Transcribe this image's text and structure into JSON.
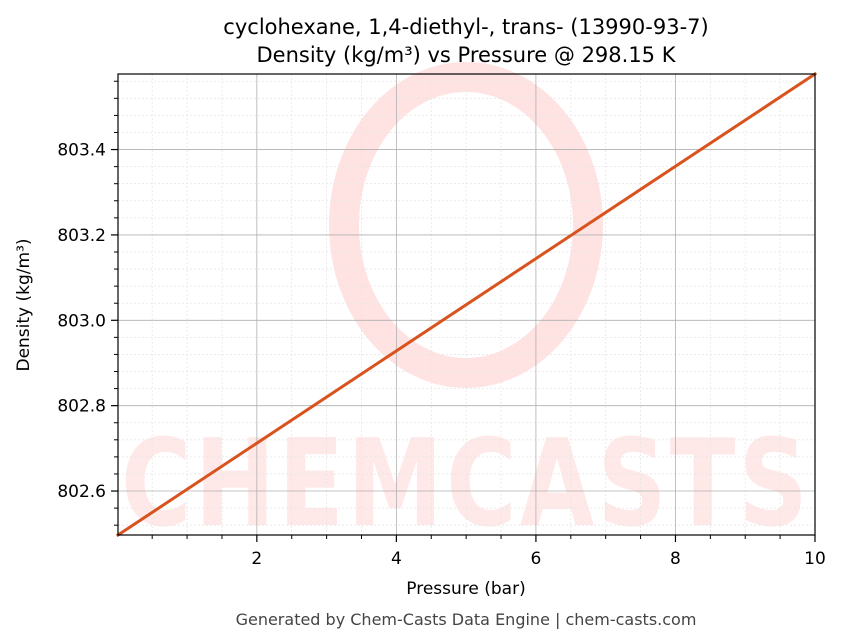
{
  "chart_data": {
    "type": "line",
    "title": "cyclohexane, 1,4-diethyl-, trans- (13990-93-7)",
    "subtitle": "Density (kg/m³) vs Pressure @ 298.15 K",
    "xlabel": "Pressure (bar)",
    "ylabel": "Density (kg/m³)",
    "xlim": [
      0.01,
      10
    ],
    "ylim": [
      802.497,
      803.577
    ],
    "xticks": [
      2,
      4,
      6,
      8,
      10
    ],
    "yticks": [
      802.6,
      802.8,
      803.0,
      803.2,
      803.4
    ],
    "ytick_labels": [
      "802.6",
      "802.8",
      "803.0",
      "803.2",
      "803.4"
    ],
    "grid": true,
    "series": [
      {
        "color": "#d9531e",
        "x": [
          0.01,
          10
        ],
        "y": [
          802.497,
          803.577
        ]
      }
    ]
  },
  "watermark": {
    "text": "CHEMCASTS",
    "color": "#ffe8e8"
  },
  "footer": "Generated by Chem-Casts Data Engine | chem-casts.com"
}
